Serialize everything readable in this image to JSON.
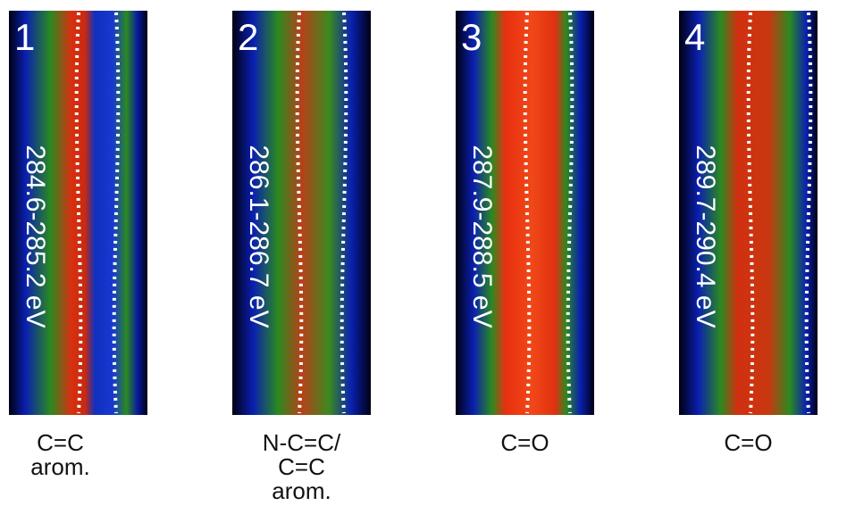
{
  "panels": [
    {
      "number": "1",
      "range": "284.6-285.2 eV",
      "label": [
        "C=C",
        "arom."
      ]
    },
    {
      "number": "2",
      "range": "286.1-286.7 eV",
      "label": [
        "N-C=C/",
        "C=C",
        "arom."
      ]
    },
    {
      "number": "3",
      "range": "287.9-288.5 eV",
      "label": [
        "C=O"
      ]
    },
    {
      "number": "4",
      "range": "289.7-290.4 eV",
      "label": [
        "C=O"
      ]
    }
  ]
}
